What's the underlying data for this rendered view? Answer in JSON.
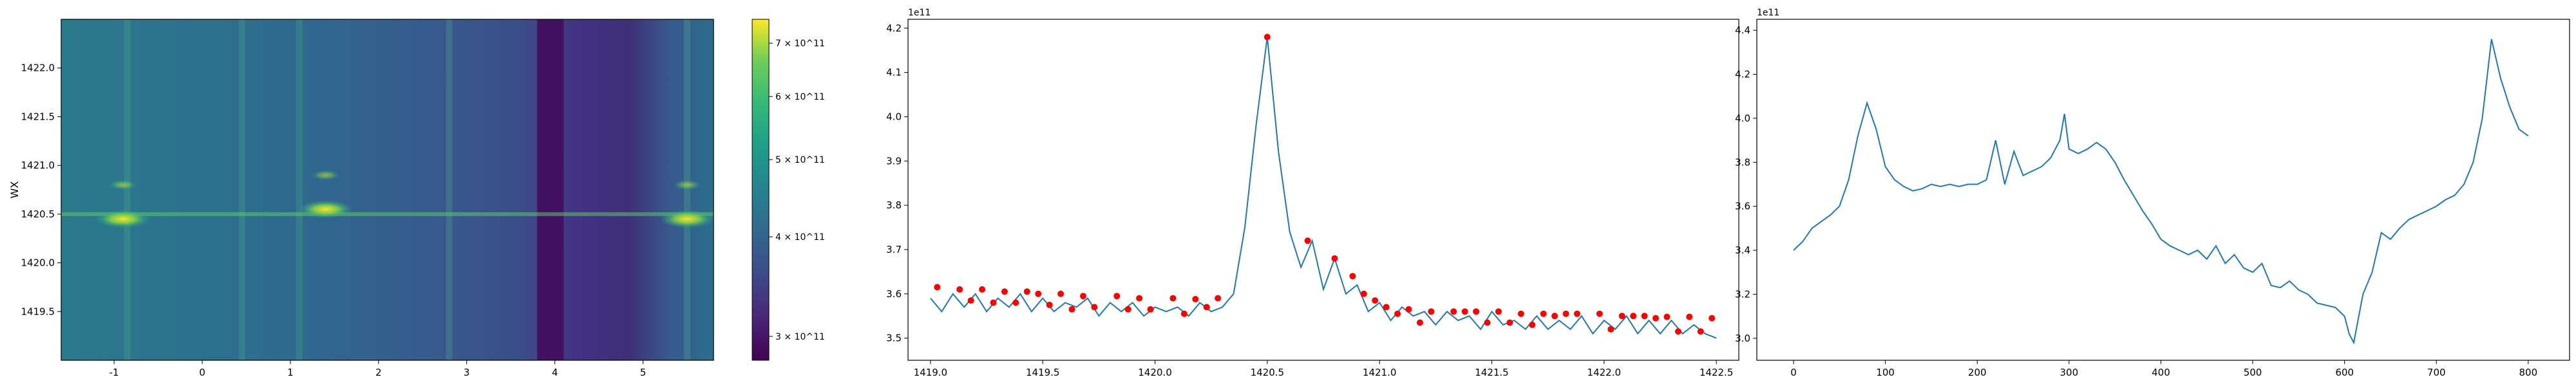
{
  "colors": {
    "line": "#1f77b4",
    "marker": "#ff0000",
    "axes": "#000000",
    "viridis_low": "#440154",
    "viridis_high": "#fde725"
  },
  "chart_data": [
    {
      "type": "heatmap",
      "title": "",
      "xlabel": "",
      "ylabel": "WX",
      "xlim": [
        -1.6,
        5.8
      ],
      "ylim": [
        1419.0,
        1422.5
      ],
      "x_ticks": [
        "-1",
        "0",
        "1",
        "2",
        "3",
        "4",
        "5"
      ],
      "y_ticks": [
        "1419.5",
        "1420.0",
        "1420.5",
        "1421.0",
        "1421.5",
        "1422.0"
      ],
      "colormap": "viridis",
      "colorbar": {
        "scale": "log",
        "range": [
          280000000000.0,
          750000000000.0
        ],
        "ticks": [
          "3 × 10^11",
          "4 × 10^11",
          "5 × 10^11",
          "6 × 10^11",
          "7 × 10^11"
        ]
      },
      "features": {
        "hydrogen_line_y": 1420.5,
        "bright_spots": [
          {
            "x": -0.9,
            "y": 1420.45,
            "value": 720000000000.0
          },
          {
            "x": 1.4,
            "y": 1420.55,
            "value": 620000000000.0
          },
          {
            "x": 5.5,
            "y": 1420.45,
            "value": 730000000000.0
          }
        ],
        "dark_band_x": [
          3.8,
          4.1
        ]
      }
    },
    {
      "type": "line",
      "title": "",
      "xlabel": "",
      "ylabel": "",
      "offset_text": "1e11",
      "xlim": [
        1418.9,
        1422.6
      ],
      "ylim": [
        3.45,
        4.22
      ],
      "x_ticks": [
        "1419.0",
        "1419.5",
        "1420.0",
        "1420.5",
        "1421.0",
        "1421.5",
        "1422.0",
        "1422.5"
      ],
      "y_ticks": [
        "3.5",
        "3.6",
        "3.7",
        "3.8",
        "3.9",
        "4.0",
        "4.1",
        "4.2"
      ],
      "series": [
        {
          "x": [
            1419.0,
            1419.05,
            1419.1,
            1419.15,
            1419.2,
            1419.25,
            1419.3,
            1419.35,
            1419.4,
            1419.45,
            1419.5,
            1419.55,
            1419.6,
            1419.65,
            1419.7,
            1419.75,
            1419.8,
            1419.85,
            1419.9,
            1419.95,
            1420.0,
            1420.05,
            1420.1,
            1420.15,
            1420.2,
            1420.25,
            1420.3,
            1420.35,
            1420.4,
            1420.45,
            1420.5,
            1420.55,
            1420.6,
            1420.65,
            1420.7,
            1420.75,
            1420.8,
            1420.85,
            1420.9,
            1420.95,
            1421.0,
            1421.05,
            1421.1,
            1421.15,
            1421.2,
            1421.25,
            1421.3,
            1421.35,
            1421.4,
            1421.45,
            1421.5,
            1421.55,
            1421.6,
            1421.65,
            1421.7,
            1421.75,
            1421.8,
            1421.85,
            1421.9,
            1421.95,
            1422.0,
            1422.05,
            1422.1,
            1422.15,
            1422.2,
            1422.25,
            1422.3,
            1422.35,
            1422.4,
            1422.45,
            1422.5
          ],
          "values": [
            3.59,
            3.56,
            3.6,
            3.57,
            3.6,
            3.56,
            3.59,
            3.57,
            3.6,
            3.56,
            3.59,
            3.56,
            3.58,
            3.57,
            3.59,
            3.55,
            3.58,
            3.56,
            3.58,
            3.55,
            3.57,
            3.56,
            3.57,
            3.55,
            3.58,
            3.56,
            3.57,
            3.6,
            3.75,
            3.98,
            4.18,
            3.92,
            3.74,
            3.66,
            3.72,
            3.61,
            3.68,
            3.6,
            3.62,
            3.56,
            3.58,
            3.54,
            3.57,
            3.55,
            3.56,
            3.53,
            3.56,
            3.54,
            3.55,
            3.52,
            3.56,
            3.53,
            3.54,
            3.52,
            3.55,
            3.52,
            3.54,
            3.52,
            3.55,
            3.51,
            3.54,
            3.52,
            3.55,
            3.51,
            3.54,
            3.51,
            3.54,
            3.51,
            3.53,
            3.51,
            3.5
          ]
        }
      ],
      "peaks": {
        "x": [
          1419.03,
          1419.13,
          1419.18,
          1419.23,
          1419.28,
          1419.33,
          1419.38,
          1419.43,
          1419.48,
          1419.53,
          1419.58,
          1419.63,
          1419.68,
          1419.73,
          1419.83,
          1419.88,
          1419.93,
          1419.98,
          1420.08,
          1420.13,
          1420.18,
          1420.23,
          1420.28,
          1420.5,
          1420.68,
          1420.8,
          1420.88,
          1420.93,
          1420.98,
          1421.03,
          1421.08,
          1421.13,
          1421.18,
          1421.23,
          1421.33,
          1421.38,
          1421.43,
          1421.48,
          1421.53,
          1421.58,
          1421.63,
          1421.68,
          1421.73,
          1421.78,
          1421.83,
          1421.88,
          1421.98,
          1422.03,
          1422.08,
          1422.13,
          1422.18,
          1422.23,
          1422.28,
          1422.33,
          1422.38,
          1422.43,
          1422.48
        ],
        "values": [
          3.615,
          3.61,
          3.585,
          3.61,
          3.58,
          3.605,
          3.58,
          3.605,
          3.6,
          3.575,
          3.6,
          3.565,
          3.595,
          3.57,
          3.595,
          3.565,
          3.59,
          3.565,
          3.59,
          3.555,
          3.588,
          3.57,
          3.59,
          4.18,
          3.72,
          3.68,
          3.64,
          3.6,
          3.585,
          3.57,
          3.555,
          3.565,
          3.535,
          3.56,
          3.56,
          3.56,
          3.56,
          3.535,
          3.56,
          3.535,
          3.555,
          3.53,
          3.555,
          3.55,
          3.555,
          3.555,
          3.555,
          3.52,
          3.55,
          3.55,
          3.55,
          3.545,
          3.548,
          3.515,
          3.548,
          3.515,
          3.545
        ]
      }
    },
    {
      "type": "line",
      "title": "",
      "xlabel": "",
      "ylabel": "",
      "offset_text": "1e11",
      "xlim": [
        -40,
        845
      ],
      "ylim": [
        2.9,
        4.45
      ],
      "x_ticks": [
        "0",
        "100",
        "200",
        "300",
        "400",
        "500",
        "600",
        "700",
        "800"
      ],
      "y_ticks": [
        "3.0",
        "3.2",
        "3.4",
        "3.6",
        "3.8",
        "4.0",
        "4.2",
        "4.4"
      ],
      "series": [
        {
          "x": [
            0,
            10,
            20,
            30,
            40,
            50,
            60,
            70,
            80,
            90,
            100,
            110,
            120,
            130,
            140,
            150,
            160,
            170,
            180,
            190,
            200,
            210,
            220,
            230,
            240,
            250,
            260,
            270,
            280,
            290,
            295,
            300,
            310,
            320,
            330,
            340,
            350,
            360,
            370,
            380,
            390,
            400,
            410,
            420,
            430,
            440,
            450,
            460,
            470,
            480,
            490,
            500,
            510,
            520,
            530,
            540,
            550,
            560,
            570,
            580,
            590,
            600,
            605,
            610,
            620,
            630,
            640,
            650,
            660,
            670,
            680,
            690,
            700,
            710,
            720,
            730,
            740,
            750,
            760,
            770,
            780,
            790,
            800
          ],
          "values": [
            3.4,
            3.44,
            3.5,
            3.53,
            3.56,
            3.6,
            3.72,
            3.92,
            4.07,
            3.95,
            3.78,
            3.72,
            3.69,
            3.67,
            3.68,
            3.7,
            3.69,
            3.7,
            3.69,
            3.7,
            3.7,
            3.72,
            3.9,
            3.7,
            3.85,
            3.74,
            3.76,
            3.78,
            3.82,
            3.9,
            4.02,
            3.86,
            3.84,
            3.86,
            3.89,
            3.86,
            3.8,
            3.72,
            3.65,
            3.58,
            3.52,
            3.45,
            3.42,
            3.4,
            3.38,
            3.4,
            3.36,
            3.42,
            3.34,
            3.38,
            3.32,
            3.3,
            3.34,
            3.24,
            3.23,
            3.26,
            3.22,
            3.2,
            3.16,
            3.15,
            3.14,
            3.1,
            3.02,
            2.98,
            3.2,
            3.3,
            3.48,
            3.45,
            3.5,
            3.54,
            3.56,
            3.58,
            3.6,
            3.63,
            3.65,
            3.7,
            3.8,
            4.0,
            4.36,
            4.18,
            4.05,
            3.95,
            3.92
          ]
        }
      ]
    }
  ]
}
